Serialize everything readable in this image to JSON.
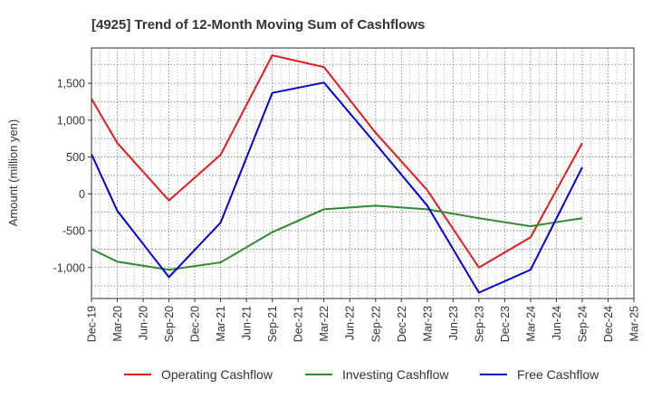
{
  "chart_data": {
    "type": "line",
    "title": "[4925]  Trend of 12-Month Moving Sum of Cashflows",
    "ylabel": "Amount (million yen)",
    "xlabel": "",
    "categories": [
      "Dec-19",
      "Mar-20",
      "Jun-20",
      "Sep-20",
      "Dec-20",
      "Mar-21",
      "Jun-21",
      "Sep-21",
      "Dec-21",
      "Mar-22",
      "Jun-22",
      "Sep-22",
      "Dec-22",
      "Mar-23",
      "Jun-23",
      "Sep-23",
      "Dec-23",
      "Mar-24",
      "Jun-24",
      "Sep-24",
      "Dec-24",
      "Mar-25"
    ],
    "yticks": [
      -1000,
      -500,
      0,
      500,
      1000,
      1500
    ],
    "ytick_labels": [
      "-1,000",
      "-500",
      "0",
      "500",
      "1,000",
      "1,500"
    ],
    "ylim": [
      -1420,
      1980
    ],
    "grid": true,
    "legend_position": "bottom",
    "series": [
      {
        "name": "Operating Cashflow",
        "color": "#e41a1c",
        "x": [
          "Dec-19",
          "Mar-20",
          "Sep-20",
          "Mar-21",
          "Sep-21",
          "Mar-22",
          "Sep-22",
          "Mar-23",
          "Sep-23",
          "Mar-24",
          "Sep-24"
        ],
        "values": [
          1290,
          690,
          -90,
          530,
          1880,
          1720,
          830,
          50,
          -1000,
          -590,
          690
        ]
      },
      {
        "name": "Investing Cashflow",
        "color": "#2e8b2e",
        "x": [
          "Dec-19",
          "Mar-20",
          "Sep-20",
          "Mar-21",
          "Sep-21",
          "Mar-22",
          "Sep-22",
          "Mar-23",
          "Sep-23",
          "Mar-24",
          "Sep-24"
        ],
        "values": [
          -750,
          -920,
          -1030,
          -930,
          -520,
          -210,
          -160,
          -210,
          -330,
          -440,
          -330
        ]
      },
      {
        "name": "Free Cashflow",
        "color": "#0000dd",
        "x": [
          "Dec-19",
          "Mar-20",
          "Sep-20",
          "Mar-21",
          "Sep-21",
          "Mar-22",
          "Sep-22",
          "Mar-23",
          "Sep-23",
          "Mar-24",
          "Sep-24"
        ],
        "values": [
          540,
          -230,
          -1130,
          -390,
          1370,
          1510,
          680,
          -160,
          -1340,
          -1030,
          360
        ]
      }
    ]
  }
}
